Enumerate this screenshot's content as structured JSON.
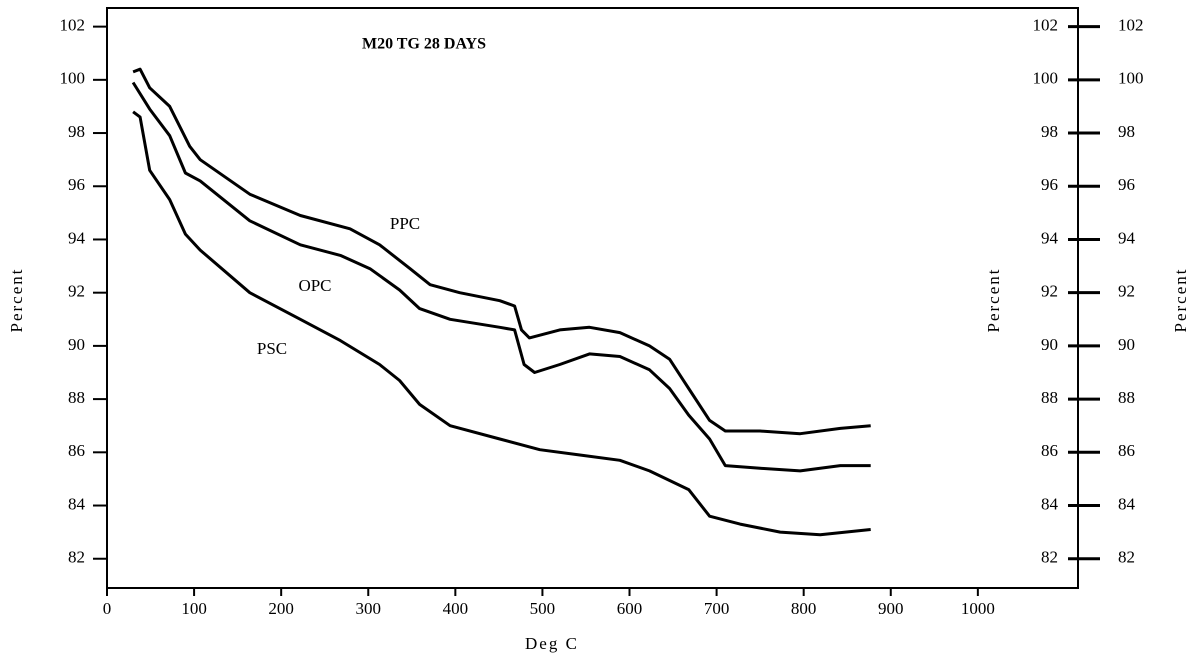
{
  "chart_data": {
    "type": "line",
    "title": "M20 TG 28 DAYS",
    "xlabel": "Deg C",
    "ylabel": "Percent",
    "y2label": "Percent",
    "annotations": [
      "PPC",
      "OPC",
      "PSC"
    ],
    "xlim": [
      0,
      1115
    ],
    "xticks": [
      0,
      100,
      200,
      300,
      400,
      500,
      600,
      700,
      800,
      900,
      1000
    ],
    "ylim": [
      80.9,
      102.7
    ],
    "yticks": [
      82,
      84,
      86,
      88,
      90,
      92,
      94,
      96,
      98,
      100,
      102
    ],
    "y2lim": [
      80.9,
      102.7
    ],
    "y2ticks": [
      82,
      84,
      86,
      88,
      90,
      92,
      94,
      96,
      98,
      100,
      102
    ],
    "series": [
      {
        "name": "PPC",
        "color": "#000000",
        "x": [
          30,
          38,
          49,
          72,
          95,
          107,
          164,
          222,
          279,
          313,
          348,
          371,
          405,
          451,
          468,
          476,
          485,
          520,
          554,
          589,
          623,
          646,
          668,
          692,
          710,
          750,
          796,
          842,
          877
        ],
        "values": [
          100.3,
          100.4,
          99.7,
          99.0,
          97.5,
          97.0,
          95.7,
          94.9,
          94.4,
          93.8,
          92.9,
          92.3,
          92.0,
          91.7,
          91.5,
          90.6,
          90.3,
          90.6,
          90.7,
          90.5,
          90.0,
          89.5,
          88.4,
          87.2,
          86.8,
          86.8,
          86.7,
          86.9,
          87.0
        ]
      },
      {
        "name": "OPC",
        "color": "#000000",
        "x": [
          30,
          49,
          72,
          90,
          107,
          164,
          222,
          268,
          302,
          336,
          359,
          394,
          451,
          468,
          479,
          491,
          520,
          554,
          589,
          623,
          646,
          668,
          692,
          710,
          750,
          796,
          842,
          877
        ],
        "values": [
          99.9,
          98.9,
          97.9,
          96.5,
          96.2,
          94.7,
          93.8,
          93.4,
          92.9,
          92.1,
          91.4,
          91.0,
          90.7,
          90.6,
          89.3,
          89.0,
          89.3,
          89.7,
          89.6,
          89.1,
          88.4,
          87.4,
          86.5,
          85.5,
          85.4,
          85.3,
          85.5,
          85.5
        ]
      },
      {
        "name": "PSC",
        "color": "#000000",
        "x": [
          30,
          38,
          49,
          72,
          90,
          107,
          164,
          222,
          268,
          313,
          336,
          359,
          394,
          451,
          497,
          543,
          589,
          623,
          668,
          692,
          727,
          773,
          819,
          877
        ],
        "values": [
          98.8,
          98.6,
          96.6,
          95.5,
          94.2,
          93.6,
          92.0,
          91.0,
          90.2,
          89.3,
          88.7,
          87.8,
          87.0,
          86.5,
          86.1,
          85.9,
          85.7,
          85.3,
          84.6,
          83.6,
          83.3,
          83.0,
          82.9,
          83.1
        ]
      }
    ]
  }
}
